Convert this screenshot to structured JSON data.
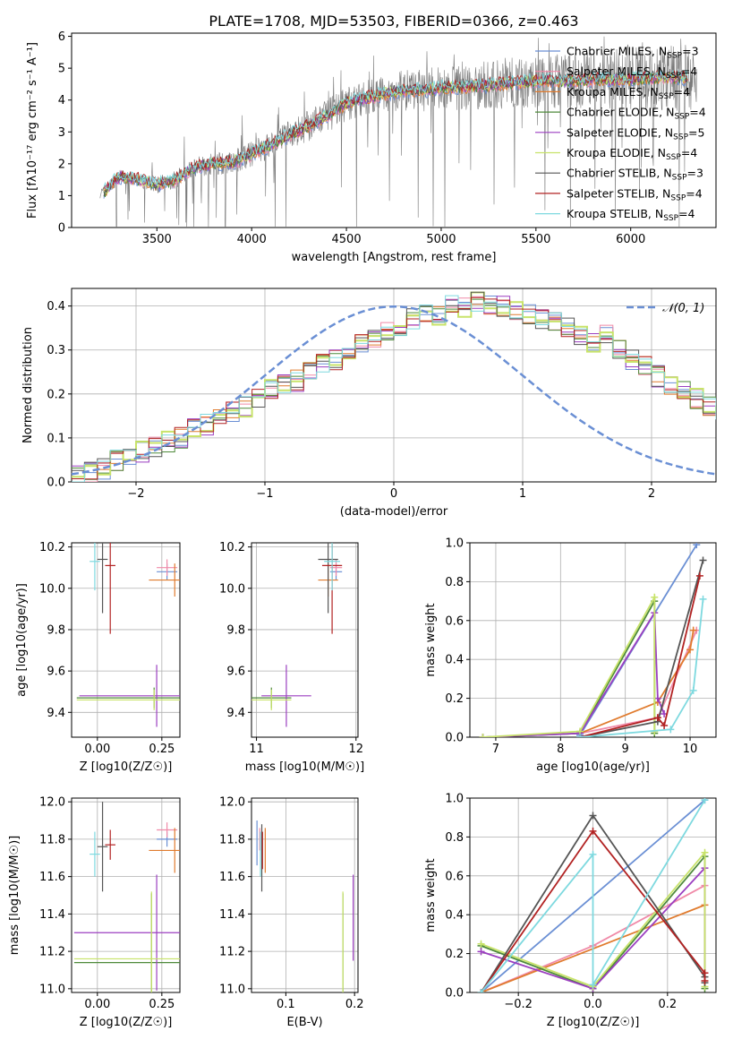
{
  "page_title": "PLATE=1708, MJD=53503, FIBERID=0366, z=0.463",
  "colors": {
    "chabrier_miles": "#6a8fd4",
    "salpeter_miles": "#f08aa8",
    "kroupa_miles": "#e07b2e",
    "chabrier_elodie": "#4e8a3a",
    "salpeter_elodie": "#9b3fc0",
    "kroupa_elodie": "#c8e36a",
    "chabrier_stelib": "#555555",
    "salpeter_stelib": "#b22222",
    "kroupa_stelib": "#7ed9df",
    "normal": "#6a8fd4"
  },
  "chart_data": [
    {
      "type": "line",
      "title": "PLATE=1708, MJD=53503, FIBERID=0366, z=0.463",
      "xlabel": "wavelength [Angstrom, rest frame]",
      "ylabel": "Flux [fλ10⁻¹⁷ erg cm⁻² s⁻¹ A⁻¹]",
      "xlim": [
        3050,
        6450
      ],
      "ylim": [
        0,
        6.1
      ],
      "xticks": [
        "3500",
        "4000",
        "4500",
        "5000",
        "5500",
        "6000"
      ],
      "yticks": [
        "0",
        "1",
        "2",
        "3",
        "4",
        "5",
        "6"
      ],
      "legend_position": "top-right",
      "legend": [
        "Chabrier MILES, N_SSP=3",
        "Salpeter MILES, N_SSP=4",
        "Kroupa MILES, N_SSP=4",
        "Chabrier ELODIE, N_SSP=4",
        "Salpeter ELODIE, N_SSP=5",
        "Kroupa ELODIE, N_SSP=4",
        "Chabrier STELIB, N_SSP=3",
        "Salpeter STELIB, N_SSP=4",
        "Kroupa STELIB, N_SSP=4"
      ],
      "observed_start": 3200,
      "observed_end": 6350,
      "model_continuum": {
        "x": [
          3220,
          3300,
          3400,
          3500,
          3600,
          3700,
          3800,
          3900,
          4000,
          4100,
          4200,
          4300,
          4400,
          4500,
          4600,
          4700,
          4800,
          4900,
          5000,
          5100,
          5200,
          5300,
          5400,
          5500,
          5600,
          5700,
          5800,
          5900,
          6000,
          6100,
          6200,
          6300
        ],
        "y": [
          1.1,
          1.6,
          1.5,
          1.35,
          1.5,
          1.9,
          2.0,
          2.05,
          2.3,
          2.6,
          2.9,
          3.2,
          3.5,
          3.9,
          4.05,
          4.2,
          4.3,
          4.3,
          4.4,
          4.4,
          4.45,
          4.5,
          4.55,
          4.6,
          4.6,
          4.6,
          4.65,
          4.65,
          4.65,
          4.7,
          4.7,
          4.7
        ]
      }
    },
    {
      "type": "line",
      "xlabel": "(data-model)/error",
      "ylabel": "Normed distribution",
      "xlim": [
        -2.5,
        2.5
      ],
      "ylim": [
        0,
        0.44
      ],
      "xticks": [
        "−2",
        "−1",
        "0",
        "1",
        "2"
      ],
      "yticks": [
        "0.0",
        "0.1",
        "0.2",
        "0.3",
        "0.4"
      ],
      "grid": true,
      "legend_position": "top-right",
      "legend": [
        "𝒩(0, 1)"
      ],
      "bin_edges_start": -2.5,
      "bin_width": 0.1,
      "hist_counts": [
        0.02,
        0.02,
        0.03,
        0.05,
        0.06,
        0.07,
        0.08,
        0.09,
        0.1,
        0.12,
        0.13,
        0.14,
        0.16,
        0.17,
        0.19,
        0.21,
        0.22,
        0.23,
        0.25,
        0.27,
        0.28,
        0.3,
        0.31,
        0.33,
        0.34,
        0.35,
        0.37,
        0.38,
        0.38,
        0.4,
        0.4,
        0.41,
        0.4,
        0.4,
        0.39,
        0.38,
        0.37,
        0.36,
        0.35,
        0.33,
        0.32,
        0.34,
        0.3,
        0.28,
        0.26,
        0.24,
        0.22,
        0.21,
        0.19,
        0.17,
        0.16,
        0.14,
        0.12,
        0.1,
        0.09,
        0.08,
        0.07,
        0.06,
        0.05,
        0.05
      ]
    },
    {
      "type": "scatter",
      "xlabel": "Z [log10(Z/Z☉)]",
      "ylabel": "age [log10(age/yr)]",
      "xlim": [
        -0.1,
        0.32
      ],
      "ylim": [
        9.28,
        10.22
      ],
      "xticks": [
        "0.00",
        "0.25"
      ],
      "yticks": [
        "9.4",
        "9.6",
        "9.8",
        "10.0",
        "10.2"
      ],
      "grid": true,
      "points": [
        {
          "model": "chabrier_miles",
          "x": 0.27,
          "y": 10.08,
          "xerr": 0.04,
          "yerr": 0.04
        },
        {
          "model": "salpeter_miles",
          "x": 0.27,
          "y": 10.1,
          "xerr": 0.04,
          "yerr": 0.04
        },
        {
          "model": "kroupa_miles",
          "x": 0.3,
          "y": 10.04,
          "xerr": 0.1,
          "yerr": 0.08
        },
        {
          "model": "chabrier_elodie",
          "x": 0.22,
          "y": 9.47,
          "xerr": 0.3,
          "yerr": 0.05
        },
        {
          "model": "salpeter_elodie",
          "x": 0.23,
          "y": 9.48,
          "xerr": 0.3,
          "yerr": 0.15
        },
        {
          "model": "kroupa_elodie",
          "x": 0.22,
          "y": 9.46,
          "xerr": 0.3,
          "yerr": 0.05
        },
        {
          "model": "chabrier_stelib",
          "x": 0.02,
          "y": 10.14,
          "xerr": 0.02,
          "yerr": 0.26
        },
        {
          "model": "salpeter_stelib",
          "x": 0.05,
          "y": 10.11,
          "xerr": 0.02,
          "yerr": 0.33
        },
        {
          "model": "kroupa_stelib",
          "x": -0.01,
          "y": 10.13,
          "xerr": 0.02,
          "yerr": 0.14
        }
      ]
    },
    {
      "type": "scatter",
      "xlabel": "mass [log10(M/M☉)]",
      "xlim": [
        10.95,
        12.02
      ],
      "ylim": [
        9.28,
        10.22
      ],
      "xticks": [
        "11",
        "12"
      ],
      "yticks": [
        "9.4",
        "9.6",
        "9.8",
        "10.0",
        "10.2"
      ],
      "grid": true,
      "points": [
        {
          "model": "chabrier_miles",
          "x": 11.8,
          "y": 10.08,
          "xerr": 0.06,
          "yerr": 0.04
        },
        {
          "model": "salpeter_miles",
          "x": 11.8,
          "y": 10.1,
          "xerr": 0.06,
          "yerr": 0.04
        },
        {
          "model": "kroupa_miles",
          "x": 11.72,
          "y": 10.04,
          "xerr": 0.1,
          "yerr": 0.08
        },
        {
          "model": "chabrier_elodie",
          "x": 11.15,
          "y": 9.47,
          "xerr": 0.2,
          "yerr": 0.05
        },
        {
          "model": "salpeter_elodie",
          "x": 11.3,
          "y": 9.48,
          "xerr": 0.25,
          "yerr": 0.15
        },
        {
          "model": "kroupa_elodie",
          "x": 11.15,
          "y": 9.46,
          "xerr": 0.2,
          "yerr": 0.05
        },
        {
          "model": "chabrier_stelib",
          "x": 11.72,
          "y": 10.14,
          "xerr": 0.1,
          "yerr": 0.26
        },
        {
          "model": "salpeter_stelib",
          "x": 11.76,
          "y": 10.11,
          "xerr": 0.1,
          "yerr": 0.33
        },
        {
          "model": "kroupa_stelib",
          "x": 11.76,
          "y": 10.13,
          "xerr": 0.08,
          "yerr": 0.14
        }
      ]
    },
    {
      "type": "line",
      "xlabel": "age [log10(age/yr)]",
      "ylabel": "mass weight",
      "xlim": [
        6.6,
        10.4
      ],
      "ylim": [
        0,
        1.0
      ],
      "xticks": [
        "7",
        "8",
        "9",
        "10"
      ],
      "yticks": [
        "0.0",
        "0.2",
        "0.4",
        "0.6",
        "0.8",
        "1.0"
      ],
      "grid": true,
      "series": [
        {
          "model": "chabrier_miles",
          "x": [
            8.3,
            10.1
          ],
          "y": [
            0.01,
            0.99
          ]
        },
        {
          "model": "salpeter_miles",
          "x": [
            8.3,
            9.5,
            10.1
          ],
          "y": [
            0.02,
            0.1,
            0.55
          ]
        },
        {
          "model": "kroupa_miles",
          "x": [
            8.3,
            9.5,
            10.0,
            10.05
          ],
          "y": [
            0.02,
            0.18,
            0.45,
            0.55
          ]
        },
        {
          "model": "chabrier_elodie",
          "x": [
            6.8,
            8.3,
            9.45,
            9.45
          ],
          "y": [
            0.0,
            0.02,
            0.7,
            0.02
          ]
        },
        {
          "model": "salpeter_elodie",
          "x": [
            6.8,
            8.3,
            9.45,
            9.5,
            9.6
          ],
          "y": [
            0.0,
            0.02,
            0.64,
            0.2,
            0.12
          ]
        },
        {
          "model": "kroupa_elodie",
          "x": [
            6.8,
            8.3,
            9.45,
            9.45
          ],
          "y": [
            0.0,
            0.03,
            0.72,
            0.03
          ]
        },
        {
          "model": "chabrier_stelib",
          "x": [
            8.3,
            9.5,
            10.2
          ],
          "y": [
            0.0,
            0.08,
            0.91
          ]
        },
        {
          "model": "salpeter_stelib",
          "x": [
            8.3,
            9.5,
            9.6,
            10.15
          ],
          "y": [
            0.0,
            0.1,
            0.06,
            0.83
          ]
        },
        {
          "model": "kroupa_stelib",
          "x": [
            8.3,
            9.7,
            10.05,
            10.2
          ],
          "y": [
            0.0,
            0.04,
            0.24,
            0.71
          ]
        }
      ]
    },
    {
      "type": "scatter",
      "xlabel": "Z [log10(Z/Z☉)]",
      "ylabel": "mass [log10(M/M☉)]",
      "xlim": [
        -0.1,
        0.32
      ],
      "ylim": [
        10.98,
        12.02
      ],
      "xticks": [
        "0.00",
        "0.25"
      ],
      "yticks": [
        "11.0",
        "11.2",
        "11.4",
        "11.6",
        "11.8",
        "12.0"
      ],
      "grid": true,
      "points": [
        {
          "model": "chabrier_miles",
          "x": 0.27,
          "y": 11.8,
          "xerr": 0.04,
          "yerr": 0.04
        },
        {
          "model": "salpeter_miles",
          "x": 0.27,
          "y": 11.85,
          "xerr": 0.04,
          "yerr": 0.04
        },
        {
          "model": "kroupa_miles",
          "x": 0.3,
          "y": 11.74,
          "xerr": 0.1,
          "yerr": 0.12
        },
        {
          "model": "chabrier_elodie",
          "x": 0.21,
          "y": 11.14,
          "xerr": 0.3,
          "yerr": 0.37
        },
        {
          "model": "salpeter_elodie",
          "x": 0.23,
          "y": 11.3,
          "xerr": 0.32,
          "yerr": 0.31
        },
        {
          "model": "kroupa_elodie",
          "x": 0.21,
          "y": 11.16,
          "xerr": 0.3,
          "yerr": 0.36
        },
        {
          "model": "chabrier_stelib",
          "x": 0.02,
          "y": 11.76,
          "xerr": 0.02,
          "yerr": 0.24
        },
        {
          "model": "salpeter_stelib",
          "x": 0.05,
          "y": 11.77,
          "xerr": 0.02,
          "yerr": 0.08
        },
        {
          "model": "kroupa_stelib",
          "x": -0.01,
          "y": 11.72,
          "xerr": 0.02,
          "yerr": 0.12
        }
      ]
    },
    {
      "type": "scatter",
      "xlabel": "E(B-V)",
      "xlim": [
        0.05,
        0.205
      ],
      "ylim": [
        10.98,
        12.02
      ],
      "xticks": [
        "0.1",
        "0.2"
      ],
      "yticks": [
        "11.0",
        "11.2",
        "11.4",
        "11.6",
        "11.8",
        "12.0"
      ],
      "grid": true,
      "points": [
        {
          "model": "chabrier_miles",
          "x": 0.058,
          "y": 11.78,
          "xerr": 0,
          "yerr": 0.12
        },
        {
          "model": "salpeter_miles",
          "x": 0.062,
          "y": 11.8,
          "xerr": 0,
          "yerr": 0.06
        },
        {
          "model": "kroupa_miles",
          "x": 0.07,
          "y": 11.74,
          "xerr": 0,
          "yerr": 0.12
        },
        {
          "model": "chabrier_elodie",
          "x": 0.183,
          "y": 11.14,
          "xerr": 0,
          "yerr": 0.37
        },
        {
          "model": "salpeter_elodie",
          "x": 0.198,
          "y": 11.38,
          "xerr": 0,
          "yerr": 0.23
        },
        {
          "model": "kroupa_elodie",
          "x": 0.183,
          "y": 11.16,
          "xerr": 0,
          "yerr": 0.36
        },
        {
          "model": "chabrier_stelib",
          "x": 0.065,
          "y": 11.7,
          "xerr": 0,
          "yerr": 0.18
        },
        {
          "model": "salpeter_stelib",
          "x": 0.066,
          "y": 11.74,
          "xerr": 0,
          "yerr": 0.1
        },
        {
          "model": "kroupa_stelib",
          "x": 0.063,
          "y": 11.72,
          "xerr": 0,
          "yerr": 0.12
        }
      ]
    },
    {
      "type": "line",
      "xlabel": "Z [log10(Z/Z☉)]",
      "ylabel": "mass weight",
      "xlim": [
        -0.33,
        0.33
      ],
      "ylim": [
        0,
        1.0
      ],
      "xticks": [
        "−0.2",
        "0.0",
        "0.2"
      ],
      "yticks": [
        "0.0",
        "0.2",
        "0.4",
        "0.6",
        "0.8",
        "1.0"
      ],
      "grid": true,
      "series": [
        {
          "model": "chabrier_miles",
          "x": [
            -0.3,
            0.3
          ],
          "y": [
            0.0,
            0.99
          ]
        },
        {
          "model": "salpeter_miles",
          "x": [
            -0.3,
            0.0,
            0.3
          ],
          "y": [
            0.0,
            0.24,
            0.55
          ]
        },
        {
          "model": "kroupa_miles",
          "x": [
            -0.3,
            0.3
          ],
          "y": [
            0.0,
            0.45
          ]
        },
        {
          "model": "chabrier_elodie",
          "x": [
            -0.3,
            0.0,
            0.3,
            0.3
          ],
          "y": [
            0.24,
            0.02,
            0.7,
            0.02
          ]
        },
        {
          "model": "salpeter_elodie",
          "x": [
            -0.3,
            0.0,
            0.3,
            0.3
          ],
          "y": [
            0.21,
            0.02,
            0.64,
            0.1
          ]
        },
        {
          "model": "kroupa_elodie",
          "x": [
            -0.3,
            0.0,
            0.3,
            0.3
          ],
          "y": [
            0.25,
            0.03,
            0.72,
            0.03
          ]
        },
        {
          "model": "chabrier_stelib",
          "x": [
            -0.3,
            0.0,
            0.3,
            0.3
          ],
          "y": [
            0.0,
            0.91,
            0.08,
            0.05
          ]
        },
        {
          "model": "salpeter_stelib",
          "x": [
            -0.3,
            0.0,
            0.3,
            0.3
          ],
          "y": [
            0.0,
            0.83,
            0.1,
            0.06
          ]
        },
        {
          "model": "kroupa_stelib",
          "x": [
            -0.3,
            0.0,
            0.0,
            0.3
          ],
          "y": [
            0.0,
            0.71,
            0.04,
            0.99
          ]
        }
      ]
    }
  ]
}
